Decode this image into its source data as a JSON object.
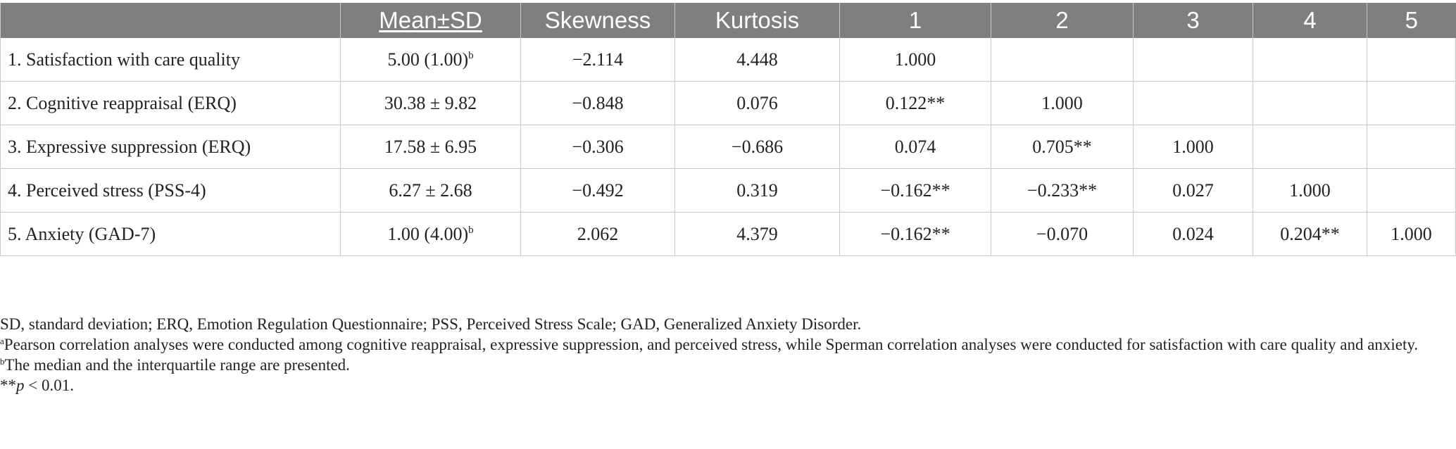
{
  "table": {
    "headers": [
      "",
      "Mean±SD",
      "Skewness",
      "Kurtosis",
      "1",
      "2",
      "3",
      "4",
      "5"
    ],
    "rows": [
      {
        "label": "1. Satisfaction with care quality",
        "mean_sd": "5.00 (1.00)",
        "mean_sup": "b",
        "skewness": "−2.114",
        "kurtosis": "4.448",
        "c1": "1.000",
        "c2": "",
        "c3": "",
        "c4": "",
        "c5": ""
      },
      {
        "label": "2. Cognitive reappraisal (ERQ)",
        "mean_sd": "30.38 ± 9.82",
        "mean_sup": "",
        "skewness": "−0.848",
        "kurtosis": "0.076",
        "c1": "0.122**",
        "c2": "1.000",
        "c3": "",
        "c4": "",
        "c5": ""
      },
      {
        "label": "3. Expressive suppression (ERQ)",
        "mean_sd": "17.58 ± 6.95",
        "mean_sup": "",
        "skewness": "−0.306",
        "kurtosis": "−0.686",
        "c1": "0.074",
        "c2": "0.705**",
        "c3": "1.000",
        "c4": "",
        "c5": ""
      },
      {
        "label": "4. Perceived stress (PSS-4)",
        "mean_sd": "6.27 ± 2.68",
        "mean_sup": "",
        "skewness": "−0.492",
        "kurtosis": "0.319",
        "c1": "−0.162**",
        "c2": "−0.233**",
        "c3": "0.027",
        "c4": "1.000",
        "c5": ""
      },
      {
        "label": "5. Anxiety (GAD-7)",
        "mean_sd": "1.00 (4.00)",
        "mean_sup": "b",
        "skewness": "2.062",
        "kurtosis": "4.379",
        "c1": "−0.162**",
        "c2": "−0.070",
        "c3": "0.024",
        "c4": "0.204**",
        "c5": "1.000"
      }
    ]
  },
  "notes": {
    "abbreviations": "SD, standard deviation; ERQ, Emotion Regulation Questionnaire; PSS, Perceived Stress Scale; GAD, Generalized Anxiety Disorder.",
    "note_a_mark": "a",
    "note_a": "Pearson correlation analyses were conducted among cognitive reappraisal, expressive suppression, and perceived stress, while Sperman correlation analyses were conducted for satisfaction with care quality and anxiety.",
    "note_b_mark": "b",
    "note_b": "The median and the interquartile range are presented.",
    "sig_prefix": "**",
    "sig_p": "p",
    "sig_rest": " < 0.01."
  }
}
